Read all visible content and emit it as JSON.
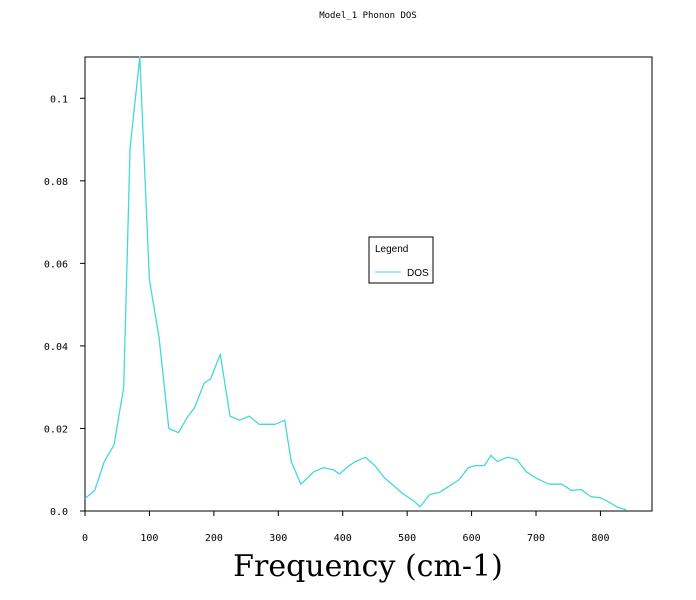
{
  "chart_data": {
    "type": "line",
    "title": "Model_1 Phonon DOS",
    "xlabel": "Frequency (cm-1)",
    "ylabel": "",
    "xlim": [
      0,
      880
    ],
    "ylim": [
      0,
      0.11
    ],
    "xticks": [
      0,
      100,
      200,
      300,
      400,
      500,
      600,
      700,
      800
    ],
    "yticks": [
      0.0,
      0.02,
      0.04,
      0.06,
      0.08,
      0.1
    ],
    "ytick_labels": [
      "0.0",
      "0.02",
      "0.04",
      "0.06",
      "0.08",
      "0.1"
    ],
    "legend": {
      "title": "Legend",
      "placement": "center-right"
    },
    "grid": false,
    "series": [
      {
        "name": "DOS",
        "color": "#44d8dc",
        "x": [
          0,
          15,
          30,
          45,
          60,
          70,
          85,
          100,
          115,
          130,
          145,
          160,
          170,
          185,
          195,
          210,
          225,
          240,
          255,
          270,
          285,
          295,
          310,
          320,
          335,
          345,
          355,
          370,
          385,
          395,
          410,
          420,
          435,
          450,
          465,
          480,
          495,
          510,
          520,
          535,
          550,
          565,
          580,
          595,
          605,
          620,
          630,
          640,
          655,
          670,
          685,
          700,
          720,
          740,
          755,
          770,
          785,
          800,
          815,
          825,
          840
        ],
        "y": [
          0.003,
          0.005,
          0.012,
          0.016,
          0.03,
          0.088,
          0.11,
          0.056,
          0.042,
          0.02,
          0.019,
          0.023,
          0.025,
          0.031,
          0.032,
          0.038,
          0.023,
          0.022,
          0.023,
          0.021,
          0.021,
          0.021,
          0.022,
          0.012,
          0.0065,
          0.008,
          0.0095,
          0.0105,
          0.01,
          0.009,
          0.011,
          0.012,
          0.013,
          0.011,
          0.008,
          0.006,
          0.004,
          0.0025,
          0.001,
          0.004,
          0.0045,
          0.006,
          0.0075,
          0.0105,
          0.011,
          0.011,
          0.0135,
          0.012,
          0.013,
          0.0125,
          0.0095,
          0.008,
          0.0065,
          0.0065,
          0.005,
          0.0052,
          0.0035,
          0.0032,
          0.002,
          0.001,
          0.0003
        ]
      }
    ]
  }
}
